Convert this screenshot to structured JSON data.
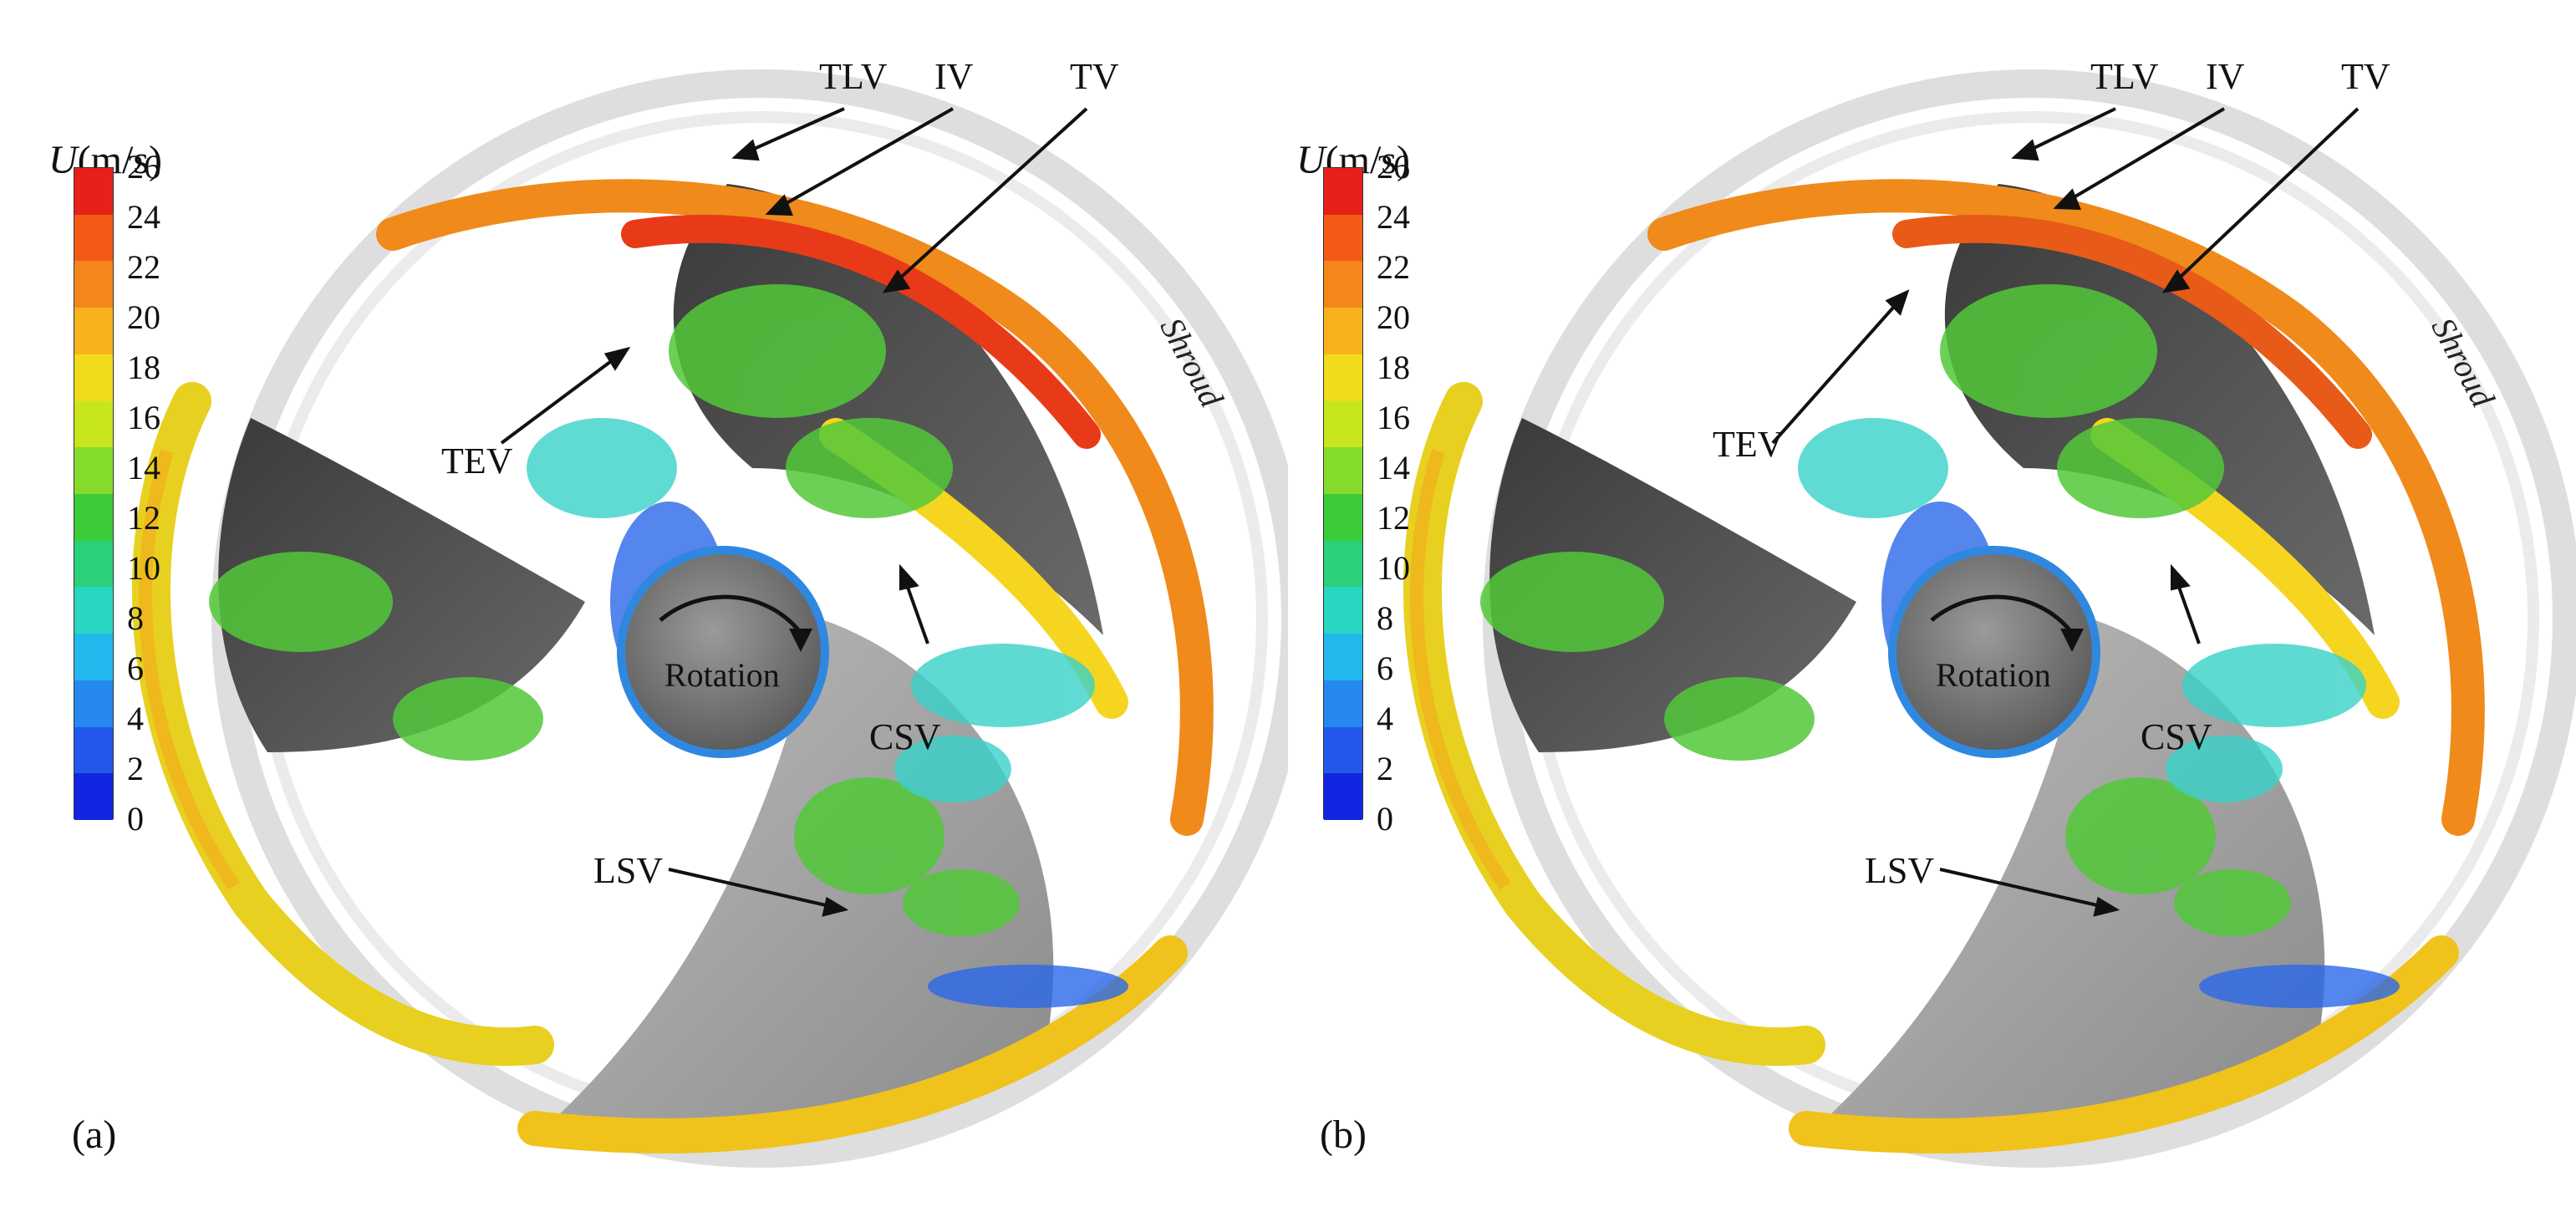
{
  "panels": [
    {
      "id": "a",
      "label": "(a)",
      "legend": {
        "symbol": "U",
        "unit": "(m/s)",
        "ticks": [
          "26",
          "24",
          "22",
          "20",
          "18",
          "16",
          "14",
          "12",
          "10",
          "8",
          "6",
          "4",
          "2",
          "0"
        ],
        "colors": [
          "#e8201a",
          "#f25a16",
          "#f5861a",
          "#f8b21c",
          "#f0dc1a",
          "#c8e61e",
          "#86dc2a",
          "#3ccc3a",
          "#2ad07a",
          "#28d6c2",
          "#22b8ee",
          "#2488ee",
          "#2258ea",
          "#1226e2"
        ]
      },
      "annotations": {
        "tlv": "TLV",
        "iv": "IV",
        "tv": "TV",
        "tev": "TEV",
        "csv": "CSV",
        "lsv": "LSV",
        "shroud": "Shroud",
        "rotation": "Rotation"
      }
    },
    {
      "id": "b",
      "label": "(b)",
      "legend": {
        "symbol": "U",
        "unit": "(m/s)",
        "ticks": [
          "26",
          "24",
          "22",
          "20",
          "18",
          "16",
          "14",
          "12",
          "10",
          "8",
          "6",
          "4",
          "2",
          "0"
        ],
        "colors": [
          "#e8201a",
          "#f25a16",
          "#f5861a",
          "#f8b21c",
          "#f0dc1a",
          "#c8e61e",
          "#86dc2a",
          "#3ccc3a",
          "#2ad07a",
          "#28d6c2",
          "#22b8ee",
          "#2488ee",
          "#2258ea",
          "#1226e2"
        ]
      },
      "annotations": {
        "tlv": "TLV",
        "iv": "IV",
        "tv": "TV",
        "tev": "TEV",
        "csv": "CSV",
        "lsv": "LSV",
        "shroud": "Shroud",
        "rotation": "Rotation"
      }
    }
  ]
}
